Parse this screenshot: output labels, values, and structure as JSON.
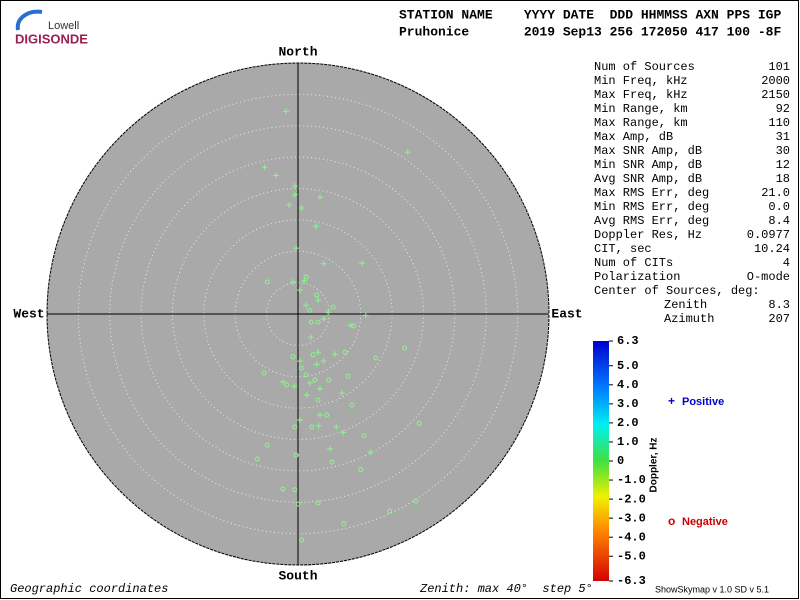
{
  "logo": {
    "top": "Lowell",
    "bottom": "DIGISONDE"
  },
  "header": {
    "line1": "STATION NAME    YYYY DATE  DDD HHMMSS AXN PPS IGP",
    "line2": "Pruhonice       2019 Sep13 256 172050 417 100 -8F"
  },
  "stats": {
    "rows": [
      [
        "Num of Sources",
        "101"
      ],
      [
        "Min Freq, kHz",
        "2000"
      ],
      [
        "Max Freq, kHz",
        "2150"
      ],
      [
        "Min Range, km",
        "92"
      ],
      [
        "Max Range, km",
        "110"
      ],
      [
        "Max Amp, dB",
        "31"
      ],
      [
        "Max SNR Amp, dB",
        "30"
      ],
      [
        "Min SNR Amp, dB",
        "12"
      ],
      [
        "Avg SNR Amp, dB",
        "18"
      ],
      [
        "Max RMS Err, deg",
        "21.0"
      ],
      [
        "Min RMS Err, deg",
        "0.0"
      ],
      [
        "Avg RMS Err, deg",
        "8.4"
      ],
      [
        "Doppler Res, Hz",
        "0.0977"
      ],
      [
        "CIT, sec",
        "10.24"
      ],
      [
        "Num of CITs",
        "4"
      ],
      [
        "Polarization",
        "O-mode"
      ]
    ],
    "center_title": "Center of Sources, deg:",
    "center_rows": [
      [
        "Zenith",
        "8.3"
      ],
      [
        "Azimuth",
        "207"
      ]
    ]
  },
  "footer": {
    "left": "Geographic coordinates",
    "middle": "Zenith: max 40°  step 5°",
    "right": "ShowSkymap v 1.0  SD v 5.1"
  },
  "chart_data": {
    "type": "skymap",
    "directions": {
      "north": "North",
      "south": "South",
      "west": "West",
      "east": "East"
    },
    "rlim": [
      0,
      40
    ],
    "rticks": [
      5,
      10,
      15,
      20,
      25,
      30,
      35,
      40
    ],
    "colorbar": {
      "title": "Doppler, Hz",
      "lim": [
        -6.3,
        6.3
      ],
      "ticks": [
        6.3,
        {
          "value": 5,
          "label": "5.0"
        },
        {
          "value": 4,
          "label": "4.0"
        },
        {
          "value": 3,
          "label": "3.0"
        },
        {
          "value": 2,
          "label": "2.0"
        },
        {
          "value": 1,
          "label": "1.0"
        },
        0,
        {
          "value": -1,
          "label": "-1.0"
        },
        {
          "value": -2,
          "label": "-2.0"
        },
        {
          "value": -3,
          "label": "-3.0"
        },
        {
          "value": -4,
          "label": "-4.0"
        },
        {
          "value": -5,
          "label": "-5.0"
        },
        -6.3
      ]
    },
    "series": [
      {
        "name": "Positive",
        "marker": "plus",
        "color": "#8cf58c",
        "label_color": "#0000cc",
        "x": [
          -1.9,
          17.5,
          -5.3,
          -3.5,
          -0.5,
          -0.5,
          3.5,
          -1.4,
          0.6,
          2.9,
          -0.3,
          4.1,
          10.2,
          -0.8,
          1.0,
          0.3,
          3.2,
          1.3,
          4.8,
          4.1,
          8.4,
          2.1,
          3.2,
          5.9,
          0.3,
          3.0,
          4.1,
          -2.4,
          1.9,
          3.5,
          -0.6,
          1.4,
          7.0,
          0.3,
          3.3,
          7.2,
          11.6,
          5.1,
          3.5,
          6.1,
          10.8
        ],
        "y": [
          32.3,
          25.8,
          23.4,
          22.1,
          20.4,
          19.0,
          18.6,
          17.4,
          16.9,
          14.0,
          10.5,
          8.0,
          8.1,
          5.1,
          5.3,
          3.8,
          2.2,
          1.4,
          0.3,
          -0.8,
          -1.8,
          -3.7,
          -6.1,
          -6.4,
          -7.5,
          -8.0,
          -7.5,
          -10.8,
          -11.0,
          -11.9,
          -11.5,
          -12.9,
          -12.6,
          -16.9,
          -17.8,
          -18.9,
          -22.0,
          -21.5,
          -16.1,
          -18.0,
          -0.2
        ]
      },
      {
        "name": "Negative",
        "marker": "circle",
        "color": "#8cf58c",
        "label_color": "#cc0000",
        "x": [
          -4.9,
          1.3,
          3.0,
          5.6,
          1.9,
          3.2,
          8.9,
          7.5,
          12.4,
          17.0,
          -0.8,
          0.5,
          -5.4,
          -1.8,
          2.7,
          4.9,
          8.0,
          3.2,
          8.6,
          4.6,
          -0.5,
          19.3,
          10.5,
          -4.9,
          -0.3,
          2.2,
          -6.5,
          5.4,
          10.0,
          -2.4,
          -0.5,
          0.0,
          3.2,
          18.8,
          14.6,
          7.3,
          0.6,
          1.3,
          2.4,
          2.1
        ],
        "y": [
          5.1,
          5.9,
          3.0,
          1.1,
          0.6,
          -1.3,
          -1.9,
          -6.1,
          -7.0,
          -5.4,
          -6.8,
          -8.6,
          -9.4,
          -11.3,
          -10.5,
          -10.5,
          -9.9,
          -13.7,
          -14.5,
          -16.1,
          -18.0,
          -17.4,
          -19.4,
          -20.9,
          -22.5,
          -18.0,
          -23.1,
          -23.6,
          -24.8,
          -27.9,
          -28.0,
          -30.3,
          -30.1,
          -29.8,
          -31.4,
          -33.4,
          -36.0,
          -9.7,
          -6.5,
          -1.3
        ]
      }
    ]
  }
}
